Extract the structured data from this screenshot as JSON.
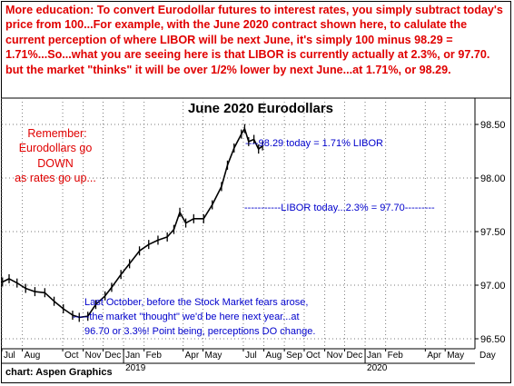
{
  "intro_text": "More education: To convert Eurodollar futures to interest rates, you simply subtract today's price from 100...For example, with the June 2020 contract shown here, to calulate the current perception of where LIBOR will be next June, it's simply 100 minus 98.29 = 1.71%...So...what you are seeing here is that LIBOR is currently actually at 2.3%, or 97.70. but the market \"thinks\" it will be over 1/2% lower by next June...at 1.71%, or 98.29.",
  "credit": "chart: Aspen Graphics",
  "colors": {
    "intro": "#e00000",
    "remember": "#e00000",
    "annotation": "#0000cc",
    "price": "#000000",
    "grid": "#7a7a7a"
  },
  "chart_data": {
    "type": "line",
    "title": "June 2020 Eurodollars",
    "xlabel": "",
    "ylabel": "",
    "ylim": [
      96.45,
      98.6
    ],
    "y_ticks": [
      "96.50",
      "97.00",
      "97.50",
      "98.00",
      "98.50"
    ],
    "y_tick_values": [
      96.5,
      97.0,
      97.5,
      98.0,
      98.5
    ],
    "x_axis_unit_label": "Day",
    "x_months": [
      "Jul",
      "Aug",
      "Oct",
      "Nov",
      "Dec",
      "Jan",
      "Feb",
      "Apr",
      "May",
      "Jul",
      "Aug",
      "Sep",
      "Oct",
      "Nov",
      "Dec",
      "Jan",
      "Feb",
      "Apr",
      "May"
    ],
    "x_month_dates": [
      "2018-07",
      "2018-08",
      "2018-10",
      "2018-11",
      "2018-12",
      "2019-01",
      "2019-02",
      "2019-04",
      "2019-05",
      "2019-07",
      "2019-08",
      "2019-09",
      "2019-10",
      "2019-11",
      "2019-12",
      "2020-01",
      "2020-02",
      "2020-04",
      "2020-05"
    ],
    "x_years": [
      "2019",
      "2020"
    ],
    "x_range": [
      "2018-07-01",
      "2020-06-15"
    ],
    "grid": true,
    "series": [
      {
        "values": [
          [
            "2018-07-02",
            97.03
          ],
          [
            "2018-07-12",
            97.06
          ],
          [
            "2018-07-24",
            97.02
          ],
          [
            "2018-08-06",
            96.97
          ],
          [
            "2018-08-20",
            96.94
          ],
          [
            "2018-09-04",
            96.93
          ],
          [
            "2018-09-18",
            96.85
          ],
          [
            "2018-10-02",
            96.78
          ],
          [
            "2018-10-16",
            96.72
          ],
          [
            "2018-10-26",
            96.7
          ],
          [
            "2018-11-08",
            96.71
          ],
          [
            "2018-11-20",
            96.82
          ],
          [
            "2018-12-04",
            96.9
          ],
          [
            "2018-12-14",
            96.98
          ],
          [
            "2018-12-28",
            97.1
          ],
          [
            "2019-01-10",
            97.2
          ],
          [
            "2019-01-25",
            97.32
          ],
          [
            "2019-02-08",
            97.38
          ],
          [
            "2019-02-22",
            97.42
          ],
          [
            "2019-03-08",
            97.45
          ],
          [
            "2019-03-18",
            97.52
          ],
          [
            "2019-03-27",
            97.68
          ],
          [
            "2019-04-05",
            97.58
          ],
          [
            "2019-04-17",
            97.62
          ],
          [
            "2019-05-02",
            97.62
          ],
          [
            "2019-05-15",
            97.75
          ],
          [
            "2019-05-29",
            97.92
          ],
          [
            "2019-06-07",
            98.12
          ],
          [
            "2019-06-17",
            98.28
          ],
          [
            "2019-06-28",
            98.41
          ],
          [
            "2019-07-03",
            98.46
          ],
          [
            "2019-07-09",
            98.34
          ],
          [
            "2019-07-17",
            98.36
          ],
          [
            "2019-07-24",
            98.27
          ],
          [
            "2019-07-30",
            98.3
          ]
        ]
      }
    ],
    "annotations": [
      {
        "text": "Remember:",
        "color": "red"
      },
      {
        "text": "Eurodollars go",
        "color": "red"
      },
      {
        "text": "DOWN",
        "color": "red"
      },
      {
        "text": "as rates go up...",
        "color": "red"
      },
      {
        "text": "----98.29 today = 1.71% LIBOR",
        "color": "blue"
      },
      {
        "text": "-----------LIBOR today...2.3% = 97.70---------",
        "color": "blue"
      },
      {
        "text": "Last October, before the Stock Market fears arose,",
        "color": "blue"
      },
      {
        "text": "-----the market \"thought\" we'd be here next year...at",
        "color": "blue"
      },
      {
        "text": "96.70 or 3.3%! Point being, perceptions DO change.",
        "color": "blue"
      }
    ]
  }
}
